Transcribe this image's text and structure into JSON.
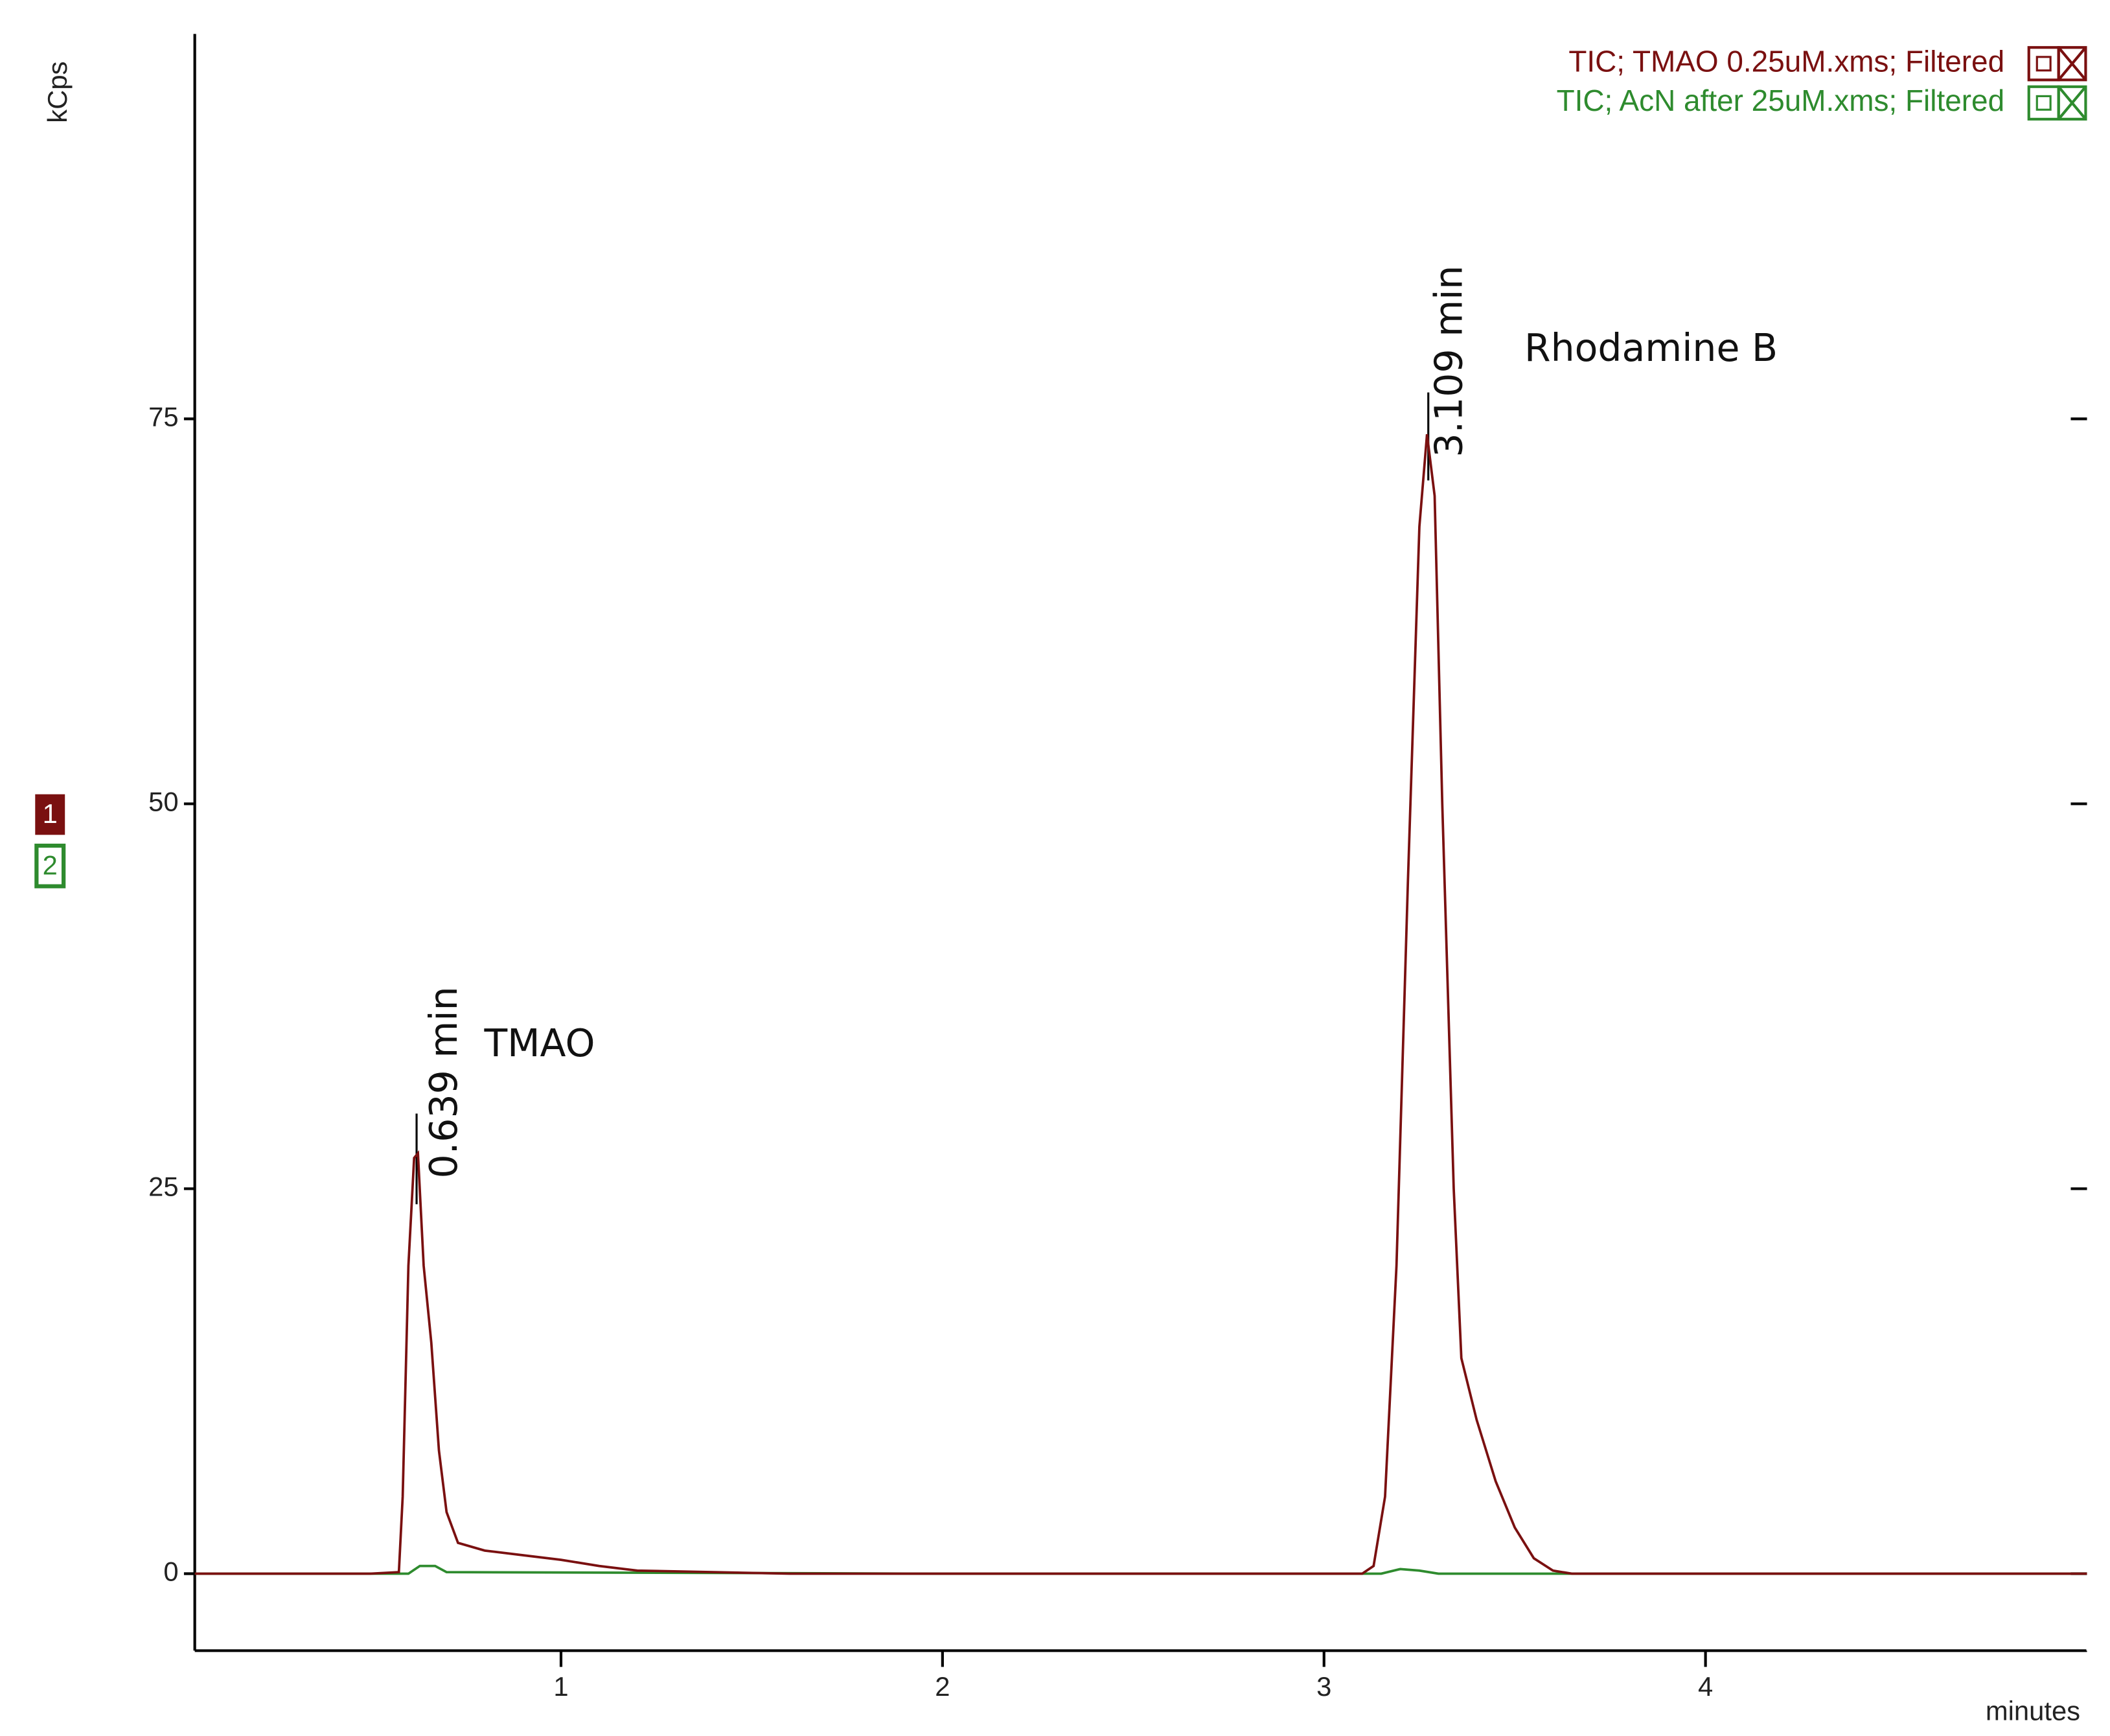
{
  "chart_data": {
    "type": "line",
    "y_label": "kCps",
    "x_label": "minutes",
    "xlim": [
      0.04,
      5.0
    ],
    "ylim": [
      -5,
      100
    ],
    "xticks": [
      1,
      2,
      3,
      4
    ],
    "yticks": [
      0,
      25,
      50,
      75
    ],
    "annotations": [
      "0.639 min",
      "TMAO",
      "3.109 min",
      "Rhodamine B"
    ],
    "trace_numbers": [
      "1",
      "2"
    ],
    "series": [
      {
        "name": "TIC;  TMAO 0.25uM.xms;  Filtered",
        "color": "#7a1010",
        "x": [
          0.04,
          0.5,
          0.575,
          0.585,
          0.6,
          0.615,
          0.625,
          0.64,
          0.66,
          0.68,
          0.7,
          0.73,
          0.8,
          0.9,
          1.0,
          1.1,
          1.2,
          1.4,
          1.6,
          3.1,
          3.13,
          3.16,
          3.19,
          3.22,
          3.25,
          3.27,
          3.29,
          3.31,
          3.34,
          3.36,
          3.4,
          3.45,
          3.5,
          3.55,
          3.6,
          3.65,
          5.0
        ],
        "values": [
          0,
          0,
          0.1,
          5,
          20,
          27,
          27.3,
          20,
          15,
          8,
          4,
          2,
          1.5,
          1.2,
          0.9,
          0.5,
          0.2,
          0.1,
          0,
          0,
          0.5,
          5,
          20,
          45,
          68,
          74,
          70,
          50,
          25,
          14,
          10,
          6,
          3,
          1,
          0.2,
          0,
          0
        ]
      },
      {
        "name": "TIC;  AcN after 25uM.xms;  Filtered",
        "color": "#2e8b2e",
        "x": [
          0.04,
          0.6,
          0.63,
          0.67,
          0.7,
          2.0,
          3.15,
          3.2,
          3.25,
          3.3,
          5.0
        ],
        "values": [
          0,
          0,
          0.5,
          0.5,
          0.1,
          0,
          0,
          0.3,
          0.2,
          0,
          0
        ]
      }
    ]
  }
}
